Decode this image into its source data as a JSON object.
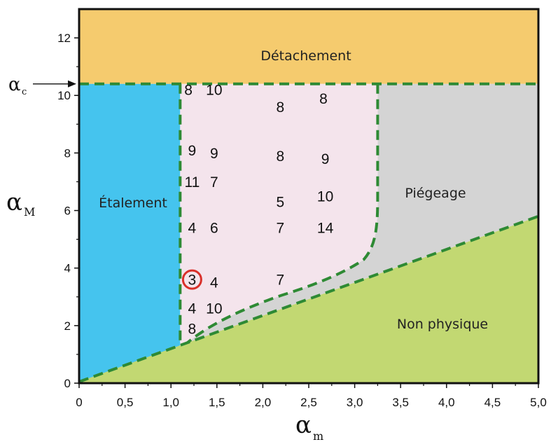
{
  "chart_data": {
    "type": "scatter",
    "title": "",
    "xlabel": {
      "symbol": "α",
      "subscript": "m"
    },
    "ylabel": {
      "symbol": "α",
      "subscript": "M"
    },
    "xlim": [
      0,
      5.0
    ],
    "ylim": [
      0,
      13
    ],
    "x_ticks": [
      {
        "v": 0,
        "label": "0"
      },
      {
        "v": 0.5,
        "label": "0,5"
      },
      {
        "v": 1.0,
        "label": "1,0"
      },
      {
        "v": 1.5,
        "label": "1,5"
      },
      {
        "v": 2.0,
        "label": "2,0"
      },
      {
        "v": 2.5,
        "label": "2,5"
      },
      {
        "v": 3.0,
        "label": "3,0"
      },
      {
        "v": 3.5,
        "label": "3,5"
      },
      {
        "v": 4.0,
        "label": "4,0"
      },
      {
        "v": 4.5,
        "label": "4,5"
      },
      {
        "v": 5.0,
        "label": "5,0"
      }
    ],
    "y_ticks": [
      {
        "v": 0,
        "label": "0"
      },
      {
        "v": 2,
        "label": "2"
      },
      {
        "v": 4,
        "label": "4"
      },
      {
        "v": 6,
        "label": "6"
      },
      {
        "v": 8,
        "label": "8"
      },
      {
        "v": 10,
        "label": "10"
      },
      {
        "v": 12,
        "label": "12"
      }
    ],
    "critical_marker": {
      "symbol": "α",
      "subscript": "c",
      "y": 10.4
    },
    "regions": [
      {
        "name": "Détachement",
        "color": "#f5cb6e"
      },
      {
        "name": "Étalement",
        "color": "#45c4ee"
      },
      {
        "name": "Piégeage",
        "color": "#d4d4d4"
      },
      {
        "name": "Non physique",
        "color": "#c2d872"
      },
      {
        "name": "",
        "color": "#f4e4ec"
      }
    ],
    "boundary_color": "#2e8a34",
    "highlight_color": "#d9302a",
    "points": [
      {
        "x": 1.19,
        "y": 10.2,
        "label": "8"
      },
      {
        "x": 1.47,
        "y": 10.2,
        "label": "10"
      },
      {
        "x": 2.19,
        "y": 9.6,
        "label": "8"
      },
      {
        "x": 2.66,
        "y": 9.9,
        "label": "8"
      },
      {
        "x": 1.23,
        "y": 8.1,
        "label": "9"
      },
      {
        "x": 1.47,
        "y": 8.0,
        "label": "9"
      },
      {
        "x": 2.19,
        "y": 7.9,
        "label": "8"
      },
      {
        "x": 2.68,
        "y": 7.8,
        "label": "9"
      },
      {
        "x": 1.23,
        "y": 7.0,
        "label": "11"
      },
      {
        "x": 1.47,
        "y": 7.0,
        "label": "7"
      },
      {
        "x": 2.19,
        "y": 6.3,
        "label": "5"
      },
      {
        "x": 2.68,
        "y": 6.5,
        "label": "10"
      },
      {
        "x": 1.23,
        "y": 5.4,
        "label": "4"
      },
      {
        "x": 1.47,
        "y": 5.4,
        "label": "6"
      },
      {
        "x": 2.19,
        "y": 5.4,
        "label": "7"
      },
      {
        "x": 2.68,
        "y": 5.4,
        "label": "14"
      },
      {
        "x": 1.23,
        "y": 3.6,
        "label": "3",
        "highlighted": true
      },
      {
        "x": 1.47,
        "y": 3.5,
        "label": "4"
      },
      {
        "x": 2.19,
        "y": 3.6,
        "label": "7"
      },
      {
        "x": 1.23,
        "y": 2.6,
        "label": "4"
      },
      {
        "x": 1.47,
        "y": 2.6,
        "label": "10"
      },
      {
        "x": 1.23,
        "y": 1.9,
        "label": "8"
      }
    ]
  }
}
